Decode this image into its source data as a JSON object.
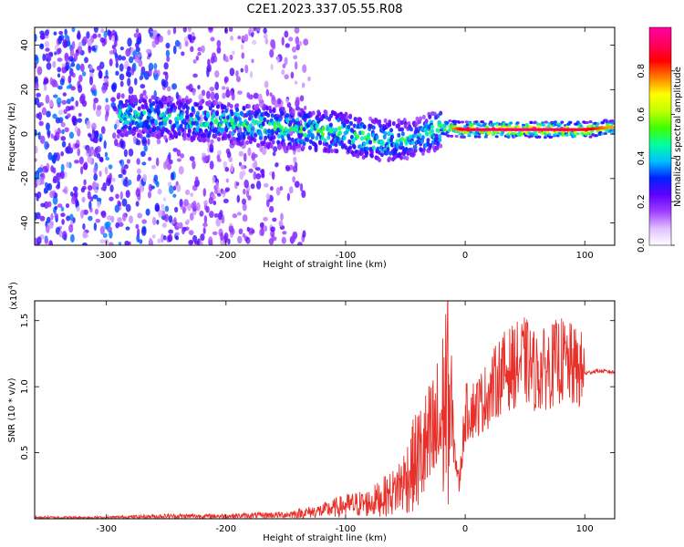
{
  "title": "C2E1.2023.337.05.55.R08",
  "chart_data": [
    {
      "type": "heatmap",
      "xlabel": "Height of straight line (km)",
      "ylabel": "Frequency (Hz)",
      "xlim": [
        -360,
        125
      ],
      "ylim": [
        -50,
        48
      ],
      "x_ticks": [
        -300,
        -200,
        -100,
        0,
        100
      ],
      "x_tick_labels": [
        "-300",
        "-200",
        "-100",
        "0",
        "100"
      ],
      "y_ticks": [
        -40,
        -20,
        0,
        20,
        40
      ],
      "y_tick_labels": [
        "-40",
        "-20",
        "0",
        "20",
        "40"
      ],
      "colorbar": {
        "label": "Normalized spectral amplitude",
        "range": [
          0,
          1
        ],
        "ticks": [
          0.0,
          0.2,
          0.4,
          0.6,
          0.8
        ],
        "tick_labels": [
          "0.0",
          "0.2",
          "0.4",
          "0.6",
          "0.8"
        ],
        "colors": [
          "#ffffff",
          "#e0c0ff",
          "#a040ff",
          "#6000ff",
          "#0020ff",
          "#00c0ff",
          "#00ffa0",
          "#40ff00",
          "#c0ff00",
          "#ffff00",
          "#ff8000",
          "#ff0000",
          "#ff0060",
          "#ff00a0"
        ]
      },
      "features": [
        {
          "x": -270,
          "f": 8,
          "amp": 0.45
        },
        {
          "x": -220,
          "f": 6,
          "amp": 0.5
        },
        {
          "x": -160,
          "f": 3,
          "amp": 0.5
        },
        {
          "x": -110,
          "f": 1,
          "amp": 0.55
        },
        {
          "x": -70,
          "f": -3,
          "amp": 0.5
        },
        {
          "x": -40,
          "f": -2,
          "amp": 0.45
        },
        {
          "x": -20,
          "f": 3,
          "amp": 0.55
        },
        {
          "x": 0,
          "f": 2,
          "amp": 0.85
        },
        {
          "x": 50,
          "f": 2,
          "amp": 0.9
        },
        {
          "x": 100,
          "f": 2,
          "amp": 0.85
        },
        {
          "x": 120,
          "f": 3,
          "amp": 0.7
        }
      ]
    },
    {
      "type": "line",
      "xlabel": "Height of straight line (km)",
      "ylabel": "SNR (10 * v/v)",
      "y_multiplier": "(x10",
      "y_multiplier_exp": "4",
      "y_multiplier_close": ")",
      "xlim": [
        -360,
        125
      ],
      "ylim": [
        0,
        1.65
      ],
      "x_ticks": [
        -300,
        -200,
        -100,
        0,
        100
      ],
      "x_tick_labels": [
        "-300",
        "-200",
        "-100",
        "0",
        "100"
      ],
      "y_ticks": [
        0.5,
        1.0,
        1.5
      ],
      "y_tick_labels": [
        "0.5",
        "1.0",
        "1.5"
      ],
      "series": [
        {
          "color": "#e8302a",
          "x": [
            -360,
            -300,
            -250,
            -200,
            -150,
            -120,
            -100,
            -80,
            -60,
            -50,
            -40,
            -30,
            -20,
            -15,
            -10,
            -5,
            0,
            10,
            20,
            30,
            40,
            50,
            60,
            70,
            80,
            90,
            100,
            110,
            125
          ],
          "y": [
            0.01,
            0.01,
            0.02,
            0.02,
            0.03,
            0.06,
            0.1,
            0.12,
            0.2,
            0.3,
            0.45,
            0.55,
            0.7,
            1.0,
            0.6,
            0.25,
            0.8,
            0.85,
            0.95,
            1.1,
            1.15,
            1.2,
            1.1,
            1.15,
            1.2,
            1.15,
            1.1,
            1.12,
            1.11
          ]
        }
      ]
    }
  ]
}
